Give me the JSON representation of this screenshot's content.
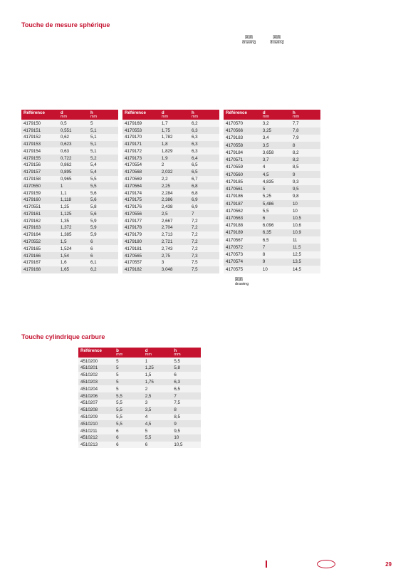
{
  "section1_title": "Touche de mesure sphérique",
  "caption_a_main": "図面",
  "caption_a_sub": "drawing",
  "caption_b_main": "図面",
  "caption_b_sub": "drawing",
  "header_ref": "Référence",
  "header_d": "d",
  "header_h": "h",
  "header_b": "b",
  "unit_mm": "mm",
  "table_a": [
    [
      "4179150",
      "0,5",
      "5"
    ],
    [
      "4179151",
      "0,551",
      "5,1"
    ],
    [
      "4179152",
      "0,62",
      "5,1"
    ],
    [
      "4179153",
      "0,623",
      "5,1"
    ],
    [
      "4179154",
      "0,63",
      "5,1"
    ],
    [
      "4179155",
      "0,722",
      "5,2"
    ],
    [
      "4179156",
      "0,862",
      "5,4"
    ],
    [
      "4179157",
      "0,895",
      "5,4"
    ],
    [
      "4179158",
      "0,965",
      "5,5"
    ],
    [
      "4170550",
      "1",
      "5,5"
    ],
    [
      "4179159",
      "1,1",
      "5,6"
    ],
    [
      "4179160",
      "1,118",
      "5,6"
    ],
    [
      "4170551",
      "1,25",
      "5,8"
    ],
    [
      "4179161",
      "1,125",
      "5,6"
    ],
    [
      "4179162",
      "1,35",
      "5,9"
    ],
    [
      "4179163",
      "1,372",
      "5,9"
    ],
    [
      "4179164",
      "1,385",
      "5,9"
    ],
    [
      "4170552",
      "1,5",
      "6"
    ],
    [
      "4179165",
      "1,524",
      "6"
    ],
    [
      "4179166",
      "1,54",
      "6"
    ],
    [
      "4179167",
      "1,6",
      "6,1"
    ],
    [
      "4179168",
      "1,65",
      "6,2"
    ]
  ],
  "table_b": [
    [
      "4179169",
      "1,7",
      "6,2"
    ],
    [
      "4170553",
      "1,75",
      "6,3"
    ],
    [
      "4179170",
      "1,782",
      "6,3"
    ],
    [
      "4179171",
      "1,8",
      "6,3"
    ],
    [
      "4179172",
      "1,829",
      "6,3"
    ],
    [
      "4179173",
      "1,9",
      "6,4"
    ],
    [
      "4170554",
      "2",
      "6,5"
    ],
    [
      "4170568",
      "2,032",
      "6,5"
    ],
    [
      "4170569",
      "2,2",
      "6,7"
    ],
    [
      "4170564",
      "2,25",
      "6,8"
    ],
    [
      "4179174",
      "2,284",
      "6,8"
    ],
    [
      "4179175",
      "2,386",
      "6,9"
    ],
    [
      "4179176",
      "2,438",
      "6,9"
    ],
    [
      "4170556",
      "2,5",
      "7"
    ],
    [
      "4179177",
      "2,667",
      "7,2"
    ],
    [
      "4179178",
      "2,704",
      "7,2"
    ],
    [
      "4179179",
      "2,713",
      "7,2"
    ],
    [
      "4179180",
      "2,721",
      "7,2"
    ],
    [
      "4179181",
      "2,743",
      "7,2"
    ],
    [
      "4170565",
      "2,75",
      "7,3"
    ],
    [
      "4170557",
      "3",
      "7,5"
    ],
    [
      "4179182",
      "3,048",
      "7,5"
    ]
  ],
  "table_c": [
    [
      "4170570",
      "3,2",
      "7,7"
    ],
    [
      "4170566",
      "3,25",
      "7,8"
    ],
    [
      "4179183",
      "3,4",
      "7,9"
    ],
    [
      "4170558",
      "3,5",
      "8"
    ],
    [
      "4179184",
      "3,658",
      "8,2"
    ],
    [
      "4170571",
      "3,7",
      "8,2"
    ],
    [
      "4170559",
      "4",
      "8,5"
    ],
    [
      "4170560",
      "4,5",
      "9"
    ],
    [
      "4179185",
      "4,835",
      "9,3"
    ],
    [
      "4170561",
      "5",
      "9,5"
    ],
    [
      "4179186",
      "5,25",
      "9,8"
    ],
    [
      "4179187",
      "5,486",
      "10"
    ],
    [
      "4170562",
      "5,5",
      "10"
    ],
    [
      "4170563",
      "6",
      "10,5"
    ],
    [
      "4179188",
      "6,096",
      "10,6"
    ],
    [
      "4179189",
      "6,35",
      "10,9"
    ],
    [
      "4170567",
      "6,5",
      "11"
    ],
    [
      "4170572",
      "7",
      "11,5"
    ],
    [
      "4170573",
      "8",
      "12,5"
    ],
    [
      "4170574",
      "9",
      "13,5"
    ],
    [
      "4170575",
      "10",
      "14,5"
    ]
  ],
  "bottom_caption_l1": "図面",
  "bottom_caption_l2": "drawing",
  "section2_title": "Touche cylindrique carbure",
  "table_d": [
    [
      "4510200",
      "5",
      "1",
      "5,5"
    ],
    [
      "4510201",
      "5",
      "1,25",
      "5,8"
    ],
    [
      "4510202",
      "5",
      "1,5",
      "6"
    ],
    [
      "4510203",
      "5",
      "1,75",
      "6,3"
    ],
    [
      "4510204",
      "5",
      "2",
      "6,5"
    ],
    [
      "4510206",
      "5,5",
      "2,5",
      "7"
    ],
    [
      "4510207",
      "5,5",
      "3",
      "7,5"
    ],
    [
      "4510208",
      "5,5",
      "3,5",
      "8"
    ],
    [
      "4510209",
      "5,5",
      "4",
      "8,5"
    ],
    [
      "4510210",
      "5,5",
      "4,5",
      "9"
    ],
    [
      "4510211",
      "6",
      "5",
      "9,5"
    ],
    [
      "4510212",
      "6",
      "5,5",
      "10"
    ],
    [
      "4510213",
      "6",
      "6",
      "10,5"
    ]
  ],
  "page_number": "29",
  "colors": {
    "brand": "#c4122f",
    "row_even": "#f3f3f3",
    "row_odd": "#e4e4e4",
    "text": "#222222",
    "bg": "#ffffff"
  }
}
